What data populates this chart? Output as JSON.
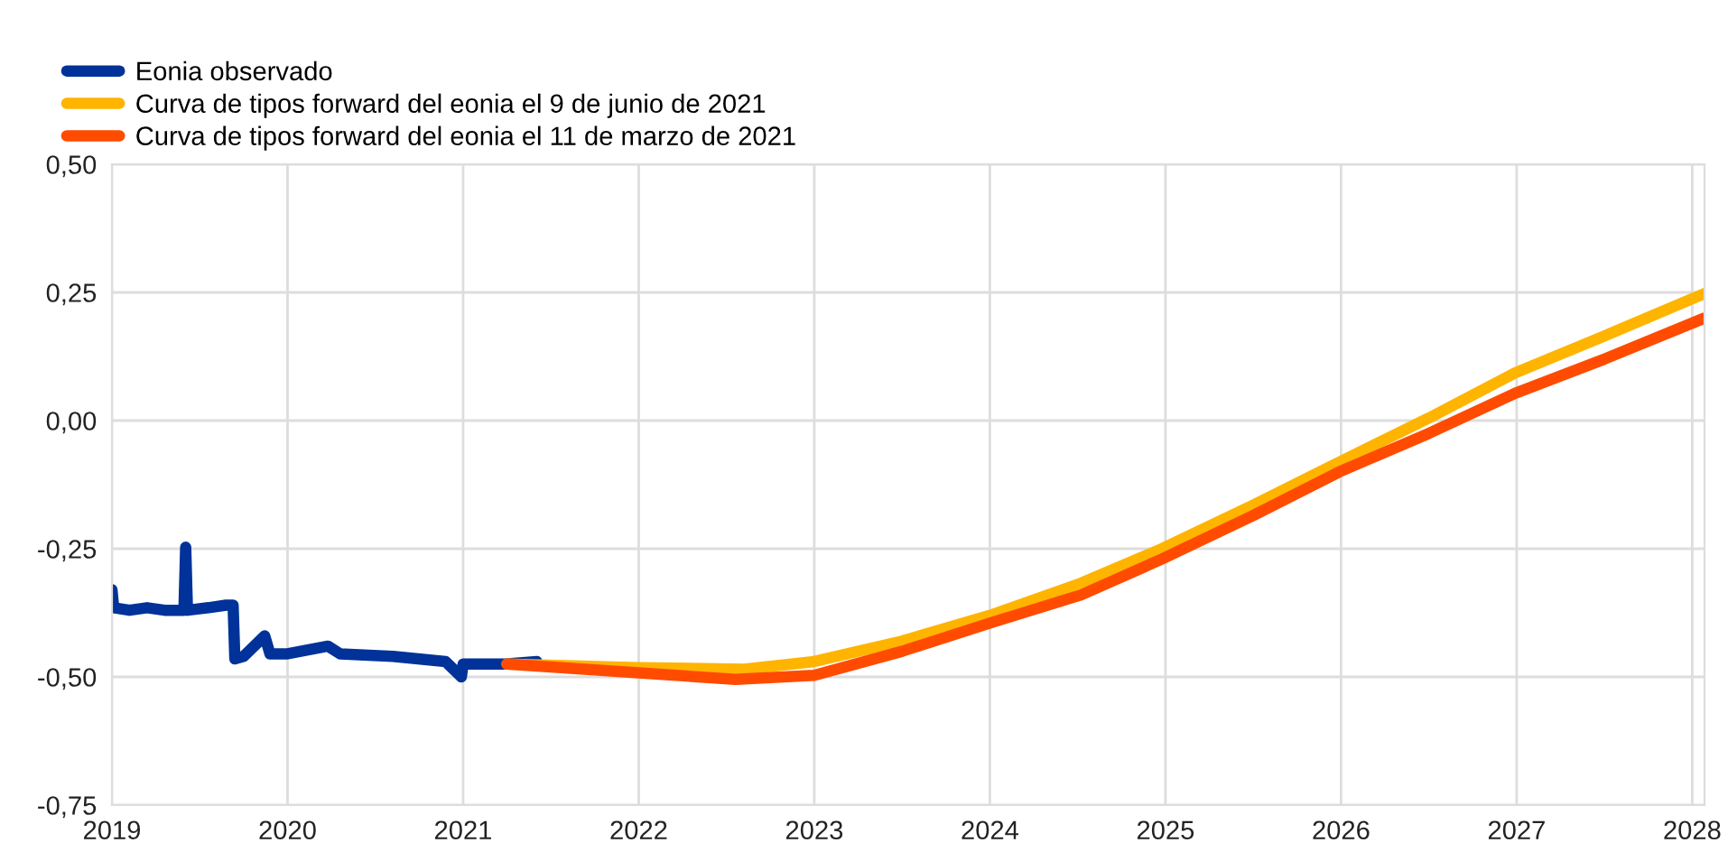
{
  "chart_data": {
    "type": "line",
    "xlim": [
      2019,
      2028.07
    ],
    "xticks": [
      2019,
      2020,
      2021,
      2022,
      2023,
      2024,
      2025,
      2026,
      2027,
      2028
    ],
    "ylim": [
      -0.75,
      0.5
    ],
    "yticks": [
      {
        "value": -0.75,
        "label": "-0,75"
      },
      {
        "value": -0.5,
        "label": "-0,50"
      },
      {
        "value": -0.25,
        "label": "-0,25"
      },
      {
        "value": 0,
        "label": "0,00"
      },
      {
        "value": 0.25,
        "label": "0,25"
      },
      {
        "value": 0.5,
        "label": "0,50"
      }
    ],
    "grid": true,
    "legend": "top left",
    "line_style": "solid",
    "marker": "none",
    "series": [
      {
        "name": "Eonia observado",
        "color": "#003299",
        "x": [
          2019.0,
          2019.01,
          2019.1,
          2019.2,
          2019.3,
          2019.41,
          2019.42,
          2019.43,
          2019.55,
          2019.65,
          2019.69,
          2019.7,
          2019.75,
          2019.87,
          2019.9,
          2020.0,
          2020.23,
          2020.3,
          2020.6,
          2020.9,
          2020.99,
          2021.0,
          2021.24,
          2021.42
        ],
        "values": [
          -0.33,
          -0.365,
          -0.37,
          -0.365,
          -0.37,
          -0.37,
          -0.247,
          -0.37,
          -0.365,
          -0.36,
          -0.36,
          -0.465,
          -0.46,
          -0.42,
          -0.455,
          -0.455,
          -0.44,
          -0.455,
          -0.46,
          -0.47,
          -0.5,
          -0.475,
          -0.475,
          -0.47
        ]
      },
      {
        "name": "Curva de tipos forward del eonia el 9 de junio de 2021",
        "color": "#ffb400",
        "x": [
          2021.25,
          2022.0,
          2022.6,
          2023.0,
          2023.5,
          2024.0,
          2024.52,
          2024.98,
          2025.5,
          2025.99,
          2026.5,
          2026.99,
          2027.5,
          2028.07
        ],
        "values": [
          -0.475,
          -0.482,
          -0.485,
          -0.47,
          -0.43,
          -0.38,
          -0.317,
          -0.25,
          -0.165,
          -0.081,
          0.005,
          0.093,
          0.165,
          0.248
        ]
      },
      {
        "name": "Curva de tipos forward del eonia el 11 de marzo de 2021",
        "color": "#ff4b00",
        "x": [
          2021.25,
          2022.0,
          2022.55,
          2023.0,
          2023.5,
          2024.0,
          2024.52,
          2024.98,
          2025.5,
          2025.99,
          2026.5,
          2026.99,
          2027.5,
          2028.07
        ],
        "values": [
          -0.475,
          -0.492,
          -0.505,
          -0.497,
          -0.45,
          -0.395,
          -0.34,
          -0.27,
          -0.185,
          -0.1,
          -0.025,
          0.053,
          0.12,
          0.2
        ]
      }
    ]
  }
}
